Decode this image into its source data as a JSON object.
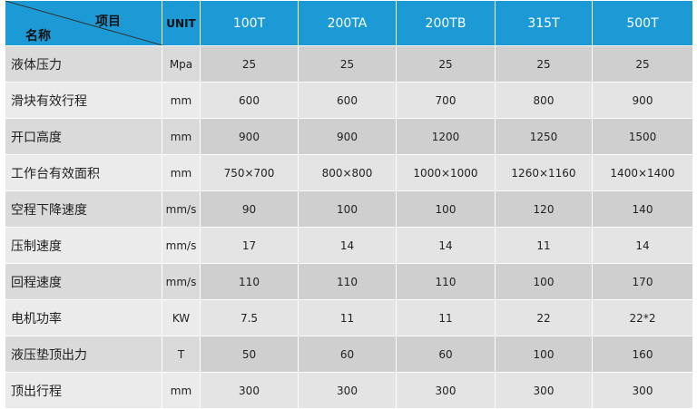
{
  "table": {
    "corner_top": "项目",
    "corner_bottom": "名称",
    "header": [
      "UNIT",
      "100T",
      "200TA",
      "200TB",
      "315T",
      "500T"
    ],
    "rows": [
      [
        "液体压力",
        "Mpa",
        "25",
        "25",
        "25",
        "25",
        "25"
      ],
      [
        "滑块有效行程",
        "mm",
        "600",
        "600",
        "700",
        "800",
        "900"
      ],
      [
        "开口高度",
        "mm",
        "900",
        "900",
        "1200",
        "1250",
        "1500"
      ],
      [
        "工作台有效面积",
        "mm",
        "750×700",
        "800×800",
        "1000×1000",
        "1260×1160",
        "1400×1400"
      ],
      [
        "空程下降速度",
        "mm/s",
        "90",
        "100",
        "100",
        "120",
        "140"
      ],
      [
        "压制速度",
        "mm/s",
        "17",
        "14",
        "14",
        "11",
        "14"
      ],
      [
        "回程速度",
        "mm/s",
        "110",
        "110",
        "110",
        "100",
        "170"
      ],
      [
        "电机功率",
        "KW",
        "7.5",
        "11",
        "11",
        "22",
        "22*2"
      ],
      [
        "液压垫顶出力",
        "T",
        "50",
        "60",
        "60",
        "100",
        "160"
      ],
      [
        "顶出行程",
        "mm",
        "300",
        "300",
        "300",
        "300",
        "300"
      ]
    ]
  }
}
